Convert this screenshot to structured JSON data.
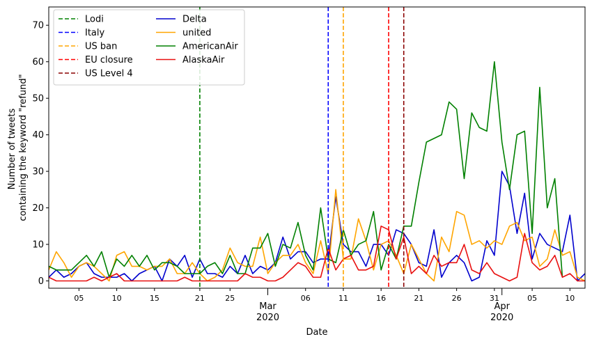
{
  "chart_data": {
    "type": "line",
    "title": "",
    "xlabel": "Date",
    "ylabel_lines": [
      "Number of tweets",
      "containing the keyword \"refund\""
    ],
    "ylim": [
      -2,
      75
    ],
    "y_ticks": [
      0,
      10,
      20,
      30,
      40,
      50,
      60,
      70
    ],
    "x_start_date": "2020-02-01",
    "x_range_days": [
      0,
      71
    ],
    "x_ticks": [
      {
        "day": 4,
        "label": "05"
      },
      {
        "day": 9,
        "label": "10"
      },
      {
        "day": 14,
        "label": "15"
      },
      {
        "day": 20,
        "label": "21"
      },
      {
        "day": 24,
        "label": "25"
      },
      {
        "day": 29,
        "label": "Mar",
        "sublabel": "2020",
        "major": true
      },
      {
        "day": 34,
        "label": "06"
      },
      {
        "day": 39,
        "label": "11"
      },
      {
        "day": 44,
        "label": "16"
      },
      {
        "day": 49,
        "label": "21"
      },
      {
        "day": 54,
        "label": "26"
      },
      {
        "day": 59,
        "label": "31"
      },
      {
        "day": 60,
        "label": "Apr",
        "sublabel": "2020",
        "major": true
      },
      {
        "day": 64,
        "label": "05"
      },
      {
        "day": 69,
        "label": "10"
      }
    ],
    "events": [
      {
        "name": "Lodi",
        "date": "2020-02-21",
        "day": 20,
        "color": "#008000"
      },
      {
        "name": "Italy",
        "date": "2020-03-09",
        "day": 37,
        "color": "#0000ff"
      },
      {
        "name": "US ban",
        "date": "2020-03-11",
        "day": 39,
        "color": "#ffa500"
      },
      {
        "name": "EU closure",
        "date": "2020-03-17",
        "day": 45,
        "color": "#ff0000"
      },
      {
        "name": "US Level 4",
        "date": "2020-03-19",
        "day": 47,
        "color": "#8b0000"
      }
    ],
    "series": [
      {
        "name": "Delta",
        "color": "#0000cd",
        "values": [
          1,
          3,
          1,
          2,
          4,
          5,
          2,
          1,
          1,
          1,
          2,
          0,
          2,
          3,
          4,
          0,
          6,
          4,
          7,
          1,
          6,
          2,
          2,
          1,
          4,
          2,
          7,
          2,
          4,
          3,
          5,
          12,
          6,
          8,
          8,
          5,
          6,
          6,
          23,
          10,
          8,
          8,
          4,
          10,
          10,
          7,
          14,
          13,
          10,
          5,
          4,
          14,
          1,
          5,
          7,
          5,
          0,
          1,
          11,
          7,
          30,
          26,
          13,
          24,
          6,
          13,
          10,
          9,
          8,
          18,
          0,
          2
        ]
      },
      {
        "name": "united",
        "color": "#ffa500",
        "values": [
          3,
          8,
          5,
          1,
          4,
          5,
          4,
          2,
          0,
          7,
          8,
          4,
          4,
          3,
          4,
          4,
          6,
          2,
          2,
          5,
          2,
          0,
          1,
          3,
          9,
          5,
          4,
          4,
          12,
          2,
          5,
          7,
          7,
          10,
          5,
          2,
          11,
          2,
          25,
          6,
          6,
          17,
          11,
          3,
          10,
          11,
          7,
          2,
          10,
          6,
          2,
          0,
          12,
          8,
          19,
          18,
          10,
          11,
          9,
          11,
          10,
          15,
          16,
          11,
          12,
          4,
          6,
          14,
          7,
          8,
          1,
          0
        ]
      },
      {
        "name": "AmericanAir",
        "color": "#008000",
        "values": [
          4,
          3,
          3,
          3,
          5,
          7,
          4,
          8,
          1,
          6,
          4,
          7,
          4,
          7,
          3,
          5,
          5,
          4,
          2,
          2,
          2,
          4,
          5,
          2,
          7,
          2,
          2,
          9,
          9,
          13,
          4,
          10,
          9,
          16,
          7,
          3,
          20,
          6,
          5,
          14,
          7,
          10,
          11,
          19,
          3,
          10,
          6,
          15,
          15,
          27,
          38,
          39,
          40,
          49,
          47,
          28,
          46,
          42,
          41,
          60,
          38,
          25,
          40,
          41,
          13,
          53,
          20,
          28,
          1
        ]
      },
      {
        "name": "AlaskaAir",
        "color": "#e81010",
        "values": [
          1,
          0,
          0,
          0,
          0,
          0,
          1,
          0,
          1,
          2,
          0,
          0,
          0,
          0,
          0,
          0,
          0,
          0,
          1,
          0,
          0,
          0,
          0,
          0,
          0,
          0,
          2,
          1,
          1,
          0,
          0,
          1,
          3,
          5,
          4,
          1,
          1,
          9,
          3,
          6,
          7,
          3,
          3,
          4,
          15,
          14,
          6,
          12,
          2,
          4,
          2,
          7,
          4,
          5,
          5,
          10,
          3,
          2,
          5,
          2,
          1,
          0,
          1,
          13,
          5,
          3,
          4,
          7,
          1,
          2,
          0,
          0
        ]
      }
    ],
    "legend_position": "top-left",
    "grid": false
  }
}
